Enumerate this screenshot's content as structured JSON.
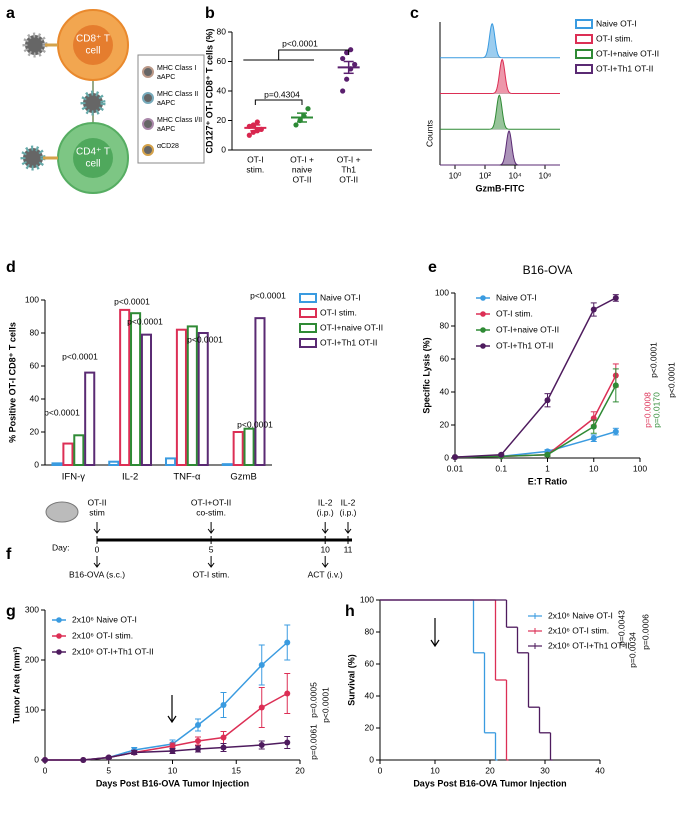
{
  "chart_data": [
    {
      "type": "diagram",
      "label": "a",
      "cells": [
        [
          "CD8⁺ T",
          "cell"
        ],
        [
          "CD4⁺ T",
          "cell"
        ]
      ],
      "legend": [
        [
          "MHC Class I",
          "aAPC"
        ],
        [
          "MHC Class II",
          "aAPC"
        ],
        [
          "MHC Class I/II",
          "aAPC"
        ],
        [
          "αCD28"
        ]
      ]
    },
    {
      "type": "dot",
      "label": "b",
      "ylabel": "CD127⁺ OT-I CD8⁺ T cells (%)",
      "categories": [
        [
          "OT-I",
          "stim."
        ],
        [
          "OT-I +",
          "naive",
          "OT-II"
        ],
        [
          "OT-I +",
          "Th1",
          "OT-II"
        ]
      ],
      "colors": [
        "#d8264f",
        "#2c8a35",
        "#5a1f6e"
      ],
      "points": [
        [
          10,
          12,
          13,
          14,
          16,
          17,
          19
        ],
        [
          17,
          20,
          23,
          28
        ],
        [
          40,
          48,
          55,
          58,
          62,
          66,
          68
        ]
      ],
      "means": [
        15,
        22,
        56
      ],
      "errors": [
        2,
        3,
        4
      ],
      "ylim": [
        0,
        80
      ],
      "yticks": [
        0,
        20,
        40,
        60,
        80
      ],
      "annotations": [
        "p=0.4304",
        "p<0.0001"
      ]
    },
    {
      "type": "flow",
      "label": "c",
      "xlabel": "GzmB-FITC",
      "ylabel": "Counts",
      "xlim": [
        0.1,
        10000000
      ],
      "xticks": [
        {
          "value": 1,
          "label": "10⁰"
        },
        {
          "value": 100,
          "label": "10²"
        },
        {
          "value": 10000,
          "label": "10⁴"
        },
        {
          "value": 1000000,
          "label": "10⁶"
        }
      ],
      "series": [
        {
          "name": "Naive OT-I",
          "color": "#3a9be0",
          "peak": 300
        },
        {
          "name": "OT-I stim.",
          "color": "#dc2f55",
          "peak": 1400
        },
        {
          "name": "OT-I+naive OT-II",
          "color": "#2f8a35",
          "peak": 900
        },
        {
          "name": "OT-I+Th1 OT-II",
          "color": "#5a2a73",
          "peak": 4000
        }
      ]
    },
    {
      "type": "bar",
      "label": "d",
      "ylabel": "% Positive OT-I CD8⁺ T cells",
      "categories": [
        "IFN-γ",
        "IL-2",
        "TNF-α",
        "GzmB"
      ],
      "series": [
        {
          "name": "Naive OT-I",
          "color": "#3a9be0",
          "values": [
            1,
            2,
            4,
            0.5
          ]
        },
        {
          "name": "OT-I stim.",
          "color": "#dc2f55",
          "values": [
            13,
            94,
            82,
            20
          ]
        },
        {
          "name": "OT-I+naive OT-II",
          "color": "#2f8a35",
          "values": [
            18,
            92,
            84,
            22
          ]
        },
        {
          "name": "OT-I+Th1 OT-II",
          "color": "#5a2a73",
          "values": [
            56,
            79,
            80,
            89
          ]
        }
      ],
      "ylim": [
        0,
        100
      ],
      "yticks": [
        0,
        20,
        40,
        60,
        80,
        100
      ],
      "annotations": [
        "p<0.0001",
        "p<0.0001",
        "p<0.0001",
        "p<0.0001",
        "p<0.0001",
        "p<0.0001",
        "p<0.0001"
      ]
    },
    {
      "type": "line",
      "label": "e",
      "title": "B16-OVA",
      "xlabel": "E:T Ratio",
      "ylabel": "Specific Lysis (%)",
      "log_x": true,
      "x": [
        0.01,
        0.1,
        1,
        10,
        30
      ],
      "xlim": [
        0.01,
        100
      ],
      "xticks": [
        0.01,
        0.1,
        1,
        10,
        100
      ],
      "ylim": [
        0,
        100
      ],
      "yticks": [
        0,
        20,
        40,
        60,
        80,
        100
      ],
      "series": [
        {
          "name": "Naive OT-I",
          "color": "#3a9be0",
          "values": [
            0.5,
            1,
            4,
            12,
            16
          ],
          "errors": [
            0,
            0,
            1,
            2,
            2
          ]
        },
        {
          "name": "OT-I stim.",
          "color": "#dc2f55",
          "values": [
            0.5,
            1,
            2,
            24,
            50
          ],
          "errors": [
            0,
            0,
            1,
            4,
            7
          ]
        },
        {
          "name": "OT-I+naive OT-II",
          "color": "#2f8a35",
          "values": [
            0.5,
            1,
            2,
            19,
            44
          ],
          "errors": [
            0,
            0,
            1,
            4,
            10
          ]
        },
        {
          "name": "OT-I+Th1 OT-II",
          "color": "#4e1b5e",
          "values": [
            0.5,
            2,
            35,
            90,
            97
          ],
          "errors": [
            0,
            0.5,
            4,
            4,
            2
          ]
        }
      ],
      "annotations": [
        "p<0.0001",
        "p<0.0001",
        "p=0.0008",
        "p=0.0170"
      ],
      "annotation_colors": [
        "#000000",
        "#000000",
        "#dc2f55",
        "#2f8a35"
      ]
    },
    {
      "type": "timeline",
      "label": "f",
      "day_label": "Day:",
      "ticks": [
        0,
        5,
        10,
        11
      ],
      "above": [
        [
          "OT-II",
          "stim"
        ],
        [
          "OT-I+OT-II",
          "co-stim."
        ],
        [
          "IL-2",
          "(i.p.)"
        ],
        [
          "IL-2",
          "(i.p.)"
        ]
      ],
      "below": [
        "B16-OVA (s.c.)",
        "OT-I stim.",
        "ACT (i.v.)"
      ]
    },
    {
      "type": "line",
      "label": "g",
      "xlabel": "Days Post B16-OVA Tumor Injection",
      "ylabel": "Tumor Area (mm²)",
      "log_x": false,
      "x": [
        0,
        3,
        5,
        7,
        10,
        12,
        14,
        17,
        19
      ],
      "xlim": [
        0,
        20
      ],
      "xticks": [
        0,
        5,
        10,
        15,
        20
      ],
      "ylim": [
        0,
        300
      ],
      "yticks": [
        0,
        100,
        200,
        300
      ],
      "series": [
        {
          "name": "2x10⁶ Naive OT-I",
          "color": "#3a9be0",
          "values": [
            0,
            0,
            5,
            20,
            32,
            70,
            110,
            190,
            235
          ],
          "errors": [
            0,
            0,
            2,
            5,
            8,
            12,
            25,
            40,
            35
          ]
        },
        {
          "name": "2x10⁶ OT-I stim.",
          "color": "#dc2f55",
          "values": [
            0,
            0,
            5,
            15,
            28,
            38,
            45,
            105,
            133
          ],
          "errors": [
            0,
            0,
            2,
            4,
            6,
            8,
            12,
            40,
            40
          ]
        },
        {
          "name": "2x10⁶ OT-I+Th1 OT-II",
          "color": "#4e1b5e",
          "values": [
            0,
            0,
            5,
            15,
            18,
            22,
            25,
            30,
            35
          ],
          "errors": [
            0,
            0,
            2,
            4,
            5,
            6,
            8,
            8,
            12
          ]
        }
      ],
      "annotations": [
        "p=0.0005",
        "p<0.0001",
        "p=0.0061"
      ]
    },
    {
      "type": "step",
      "label": "h",
      "xlabel": "Days Post B16-OVA Tumor Injection",
      "ylabel": "Survival (%)",
      "xlim": [
        0,
        40
      ],
      "xticks": [
        0,
        10,
        20,
        30,
        40
      ],
      "ylim": [
        0,
        100
      ],
      "yticks": [
        0,
        20,
        40,
        60,
        80,
        100
      ],
      "series": [
        {
          "name": "2x10⁶ Naive OT-I",
          "color": "#3a9be0",
          "x": [
            0,
            17,
            19,
            21
          ],
          "values": [
            100,
            67,
            17,
            0
          ]
        },
        {
          "name": "2x10⁶ OT-I stim.",
          "color": "#dc2f55",
          "x": [
            0,
            21,
            23
          ],
          "values": [
            100,
            50,
            0
          ]
        },
        {
          "name": "2x10⁶ OT-I+Th1 OT-II",
          "color": "#4e1b5e",
          "x": [
            0,
            23,
            25,
            27,
            29,
            31
          ],
          "values": [
            100,
            83,
            67,
            33,
            17,
            0
          ]
        }
      ],
      "annotations": [
        "p=0.0043",
        "p=0.0034",
        "p=0.0006"
      ]
    }
  ]
}
